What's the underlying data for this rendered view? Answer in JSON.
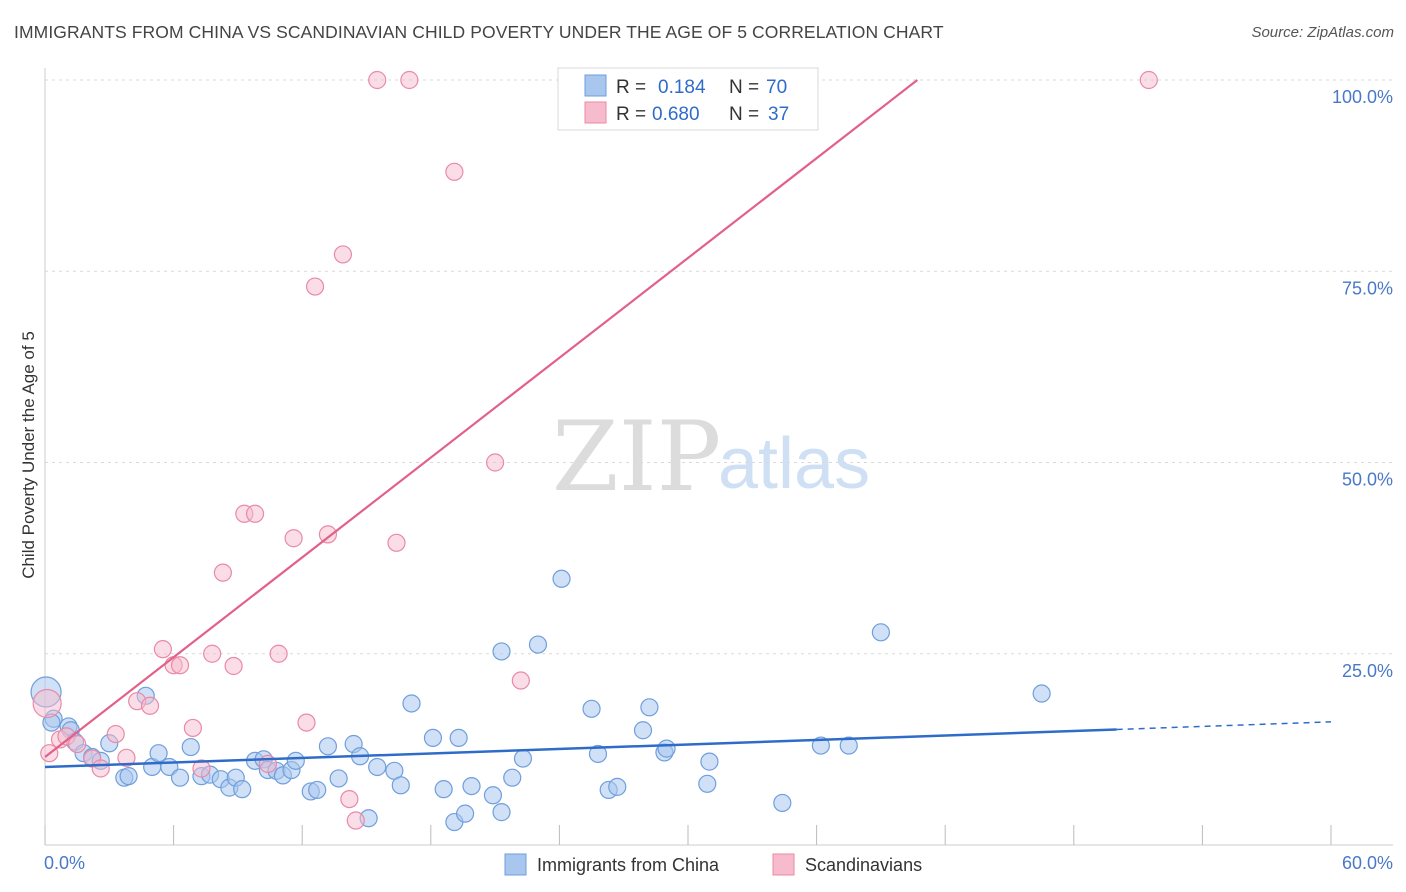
{
  "header": {
    "title": "IMMIGRANTS FROM CHINA VS SCANDINAVIAN CHILD POVERTY UNDER THE AGE OF 5 CORRELATION CHART",
    "source": "Source: ZipAtlas.com"
  },
  "watermark": {
    "zip": "ZIP",
    "atlas": "atlas"
  },
  "legend_top": {
    "rows": [
      {
        "r_label": "R =",
        "r_value": "0.184",
        "n_label": "N =",
        "n_value": "70"
      },
      {
        "r_label": "R =",
        "r_value": "0.680",
        "n_label": "N =",
        "n_value": "37"
      }
    ]
  },
  "colors": {
    "blue_fill": "#a9c6ee",
    "blue_stroke": "#6f9fdc",
    "blue_line": "#2f6cc9",
    "pink_fill": "#f6bccd",
    "pink_stroke": "#e98aa7",
    "pink_line": "#e2608a",
    "grid": "#d9d9d9",
    "tick_text": "#4a78c8"
  },
  "chart_data": {
    "type": "scatter",
    "title": "IMMIGRANTS FROM CHINA VS SCANDINAVIAN CHILD POVERTY UNDER THE AGE OF 5 CORRELATION CHART",
    "xlabel": "",
    "ylabel": "Child Poverty Under the Age of 5",
    "xlim": [
      0,
      60
    ],
    "ylim": [
      0,
      102
    ],
    "x_ticks": [
      "0.0%",
      "60.0%"
    ],
    "y_ticks": [
      {
        "value": 25,
        "label": "25.0%"
      },
      {
        "value": 50,
        "label": "50.0%"
      },
      {
        "value": 75,
        "label": "75.0%"
      },
      {
        "value": 100,
        "label": "100.0%"
      }
    ],
    "grid": true,
    "legend_position": "top-center",
    "series": [
      {
        "name": "Immigrants from China",
        "color": "#a9c6ee",
        "stats": {
          "R": 0.184,
          "N": 70
        },
        "trend": {
          "x0": 0,
          "y0": 10.2,
          "x1": 50,
          "y1": 15.1,
          "dashed_to_x": 60,
          "dashed_to_y": 16.1
        },
        "points": [
          [
            0.05,
            20.0
          ],
          [
            0.4,
            16.5
          ],
          [
            1.1,
            15.5
          ],
          [
            1.2,
            15.0
          ],
          [
            1.4,
            13.5
          ],
          [
            1.8,
            12.0
          ],
          [
            2.2,
            11.5
          ],
          [
            2.6,
            11.0
          ],
          [
            3.0,
            13.3
          ],
          [
            3.7,
            8.8
          ],
          [
            3.9,
            9.0
          ],
          [
            4.7,
            19.5
          ],
          [
            5.0,
            10.2
          ],
          [
            5.3,
            12.0
          ],
          [
            5.8,
            10.2
          ],
          [
            6.3,
            8.8
          ],
          [
            6.8,
            12.8
          ],
          [
            7.3,
            9.0
          ],
          [
            7.7,
            9.2
          ],
          [
            8.2,
            8.6
          ],
          [
            8.6,
            7.5
          ],
          [
            8.9,
            8.8
          ],
          [
            9.2,
            7.3
          ],
          [
            9.8,
            11.0
          ],
          [
            10.2,
            11.2
          ],
          [
            10.4,
            9.8
          ],
          [
            10.8,
            9.7
          ],
          [
            11.1,
            9.1
          ],
          [
            11.5,
            9.8
          ],
          [
            11.7,
            11.0
          ],
          [
            12.4,
            7.0
          ],
          [
            12.7,
            7.2
          ],
          [
            13.2,
            12.9
          ],
          [
            13.7,
            8.7
          ],
          [
            14.4,
            13.2
          ],
          [
            14.7,
            11.6
          ],
          [
            15.1,
            3.5
          ],
          [
            15.5,
            10.2
          ],
          [
            16.3,
            9.7
          ],
          [
            16.6,
            7.8
          ],
          [
            17.1,
            18.5
          ],
          [
            18.1,
            14.0
          ],
          [
            18.6,
            7.3
          ],
          [
            19.1,
            3.0
          ],
          [
            19.3,
            14.0
          ],
          [
            19.6,
            4.1
          ],
          [
            19.9,
            7.7
          ],
          [
            20.9,
            6.5
          ],
          [
            21.3,
            25.3
          ],
          [
            21.3,
            4.3
          ],
          [
            21.8,
            8.8
          ],
          [
            22.3,
            11.3
          ],
          [
            23.0,
            26.2
          ],
          [
            24.1,
            34.8
          ],
          [
            25.5,
            17.8
          ],
          [
            25.8,
            11.9
          ],
          [
            26.3,
            7.2
          ],
          [
            26.7,
            7.6
          ],
          [
            27.9,
            15.0
          ],
          [
            28.2,
            18.0
          ],
          [
            28.9,
            12.1
          ],
          [
            29.0,
            12.6
          ],
          [
            30.9,
            8.0
          ],
          [
            31.0,
            10.9
          ],
          [
            34.4,
            5.5
          ],
          [
            36.2,
            13.0
          ],
          [
            37.5,
            13.0
          ],
          [
            39.0,
            27.8
          ],
          [
            46.5,
            19.8
          ],
          [
            0.3,
            16.0
          ]
        ]
      },
      {
        "name": "Scandinavians",
        "color": "#f6bccd",
        "stats": {
          "R": 0.68,
          "N": 37
        },
        "trend": {
          "x0": 0,
          "y0": 11.5,
          "x1": 40.7,
          "y1": 100.0
        },
        "points": [
          [
            0.1,
            18.5
          ],
          [
            0.7,
            13.8
          ],
          [
            1.0,
            14.2
          ],
          [
            1.5,
            13.2
          ],
          [
            2.2,
            11.3
          ],
          [
            2.6,
            10.0
          ],
          [
            3.3,
            14.5
          ],
          [
            3.8,
            11.4
          ],
          [
            4.3,
            18.8
          ],
          [
            4.9,
            18.2
          ],
          [
            5.5,
            25.6
          ],
          [
            6.0,
            23.5
          ],
          [
            6.3,
            23.5
          ],
          [
            6.9,
            15.3
          ],
          [
            7.3,
            10.0
          ],
          [
            7.8,
            25.0
          ],
          [
            8.3,
            35.6
          ],
          [
            8.8,
            23.4
          ],
          [
            9.3,
            43.3
          ],
          [
            9.8,
            43.3
          ],
          [
            10.4,
            10.6
          ],
          [
            10.9,
            25.0
          ],
          [
            11.6,
            40.1
          ],
          [
            12.2,
            16.0
          ],
          [
            12.6,
            73.0
          ],
          [
            13.2,
            40.6
          ],
          [
            13.9,
            77.2
          ],
          [
            14.2,
            6.0
          ],
          [
            14.5,
            3.2
          ],
          [
            15.5,
            100.0
          ],
          [
            16.4,
            39.5
          ],
          [
            17.0,
            100.0
          ],
          [
            19.1,
            88.0
          ],
          [
            21.0,
            50.0
          ],
          [
            22.2,
            21.5
          ],
          [
            51.5,
            100.0
          ],
          [
            0.2,
            12.0
          ]
        ]
      }
    ]
  },
  "legend_bottom": {
    "items": [
      {
        "label": "Immigrants from China"
      },
      {
        "label": "Scandinavians"
      }
    ]
  }
}
